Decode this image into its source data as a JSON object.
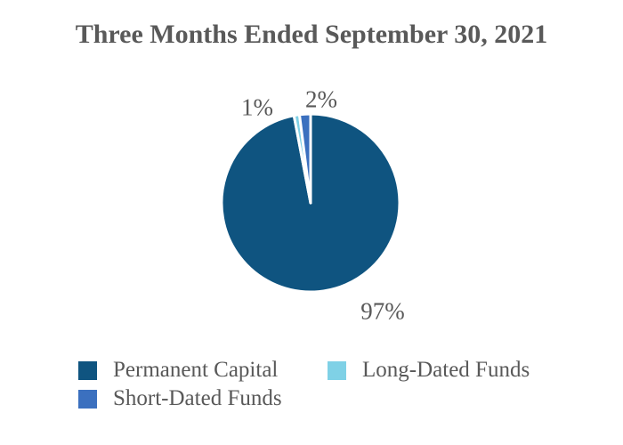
{
  "title": {
    "text": "Three Months Ended September 30, 2021",
    "color": "#595959"
  },
  "chart_data": {
    "type": "pie",
    "title": "Three Months Ended September 30, 2021",
    "unit": "percent",
    "start_angle_deg": 0,
    "direction": "clockwise",
    "legend_position": "bottom",
    "slices": [
      {
        "name": "Permanent Capital",
        "value": 97,
        "label": "97%",
        "color": "#0F5480"
      },
      {
        "name": "Long-Dated Funds",
        "value": 1,
        "label": "1%",
        "color": "#7FD1E6"
      },
      {
        "name": "Short-Dated Funds",
        "value": 2,
        "label": "2%",
        "color": "#3B70BF"
      }
    ]
  },
  "legend": {
    "text_color": "#595959",
    "items": [
      {
        "label": "Permanent Capital",
        "color": "#0F5480"
      },
      {
        "label": "Short-Dated Funds",
        "color": "#3B70BF"
      },
      {
        "label": "Long-Dated Funds",
        "color": "#7FD1E6"
      }
    ]
  }
}
